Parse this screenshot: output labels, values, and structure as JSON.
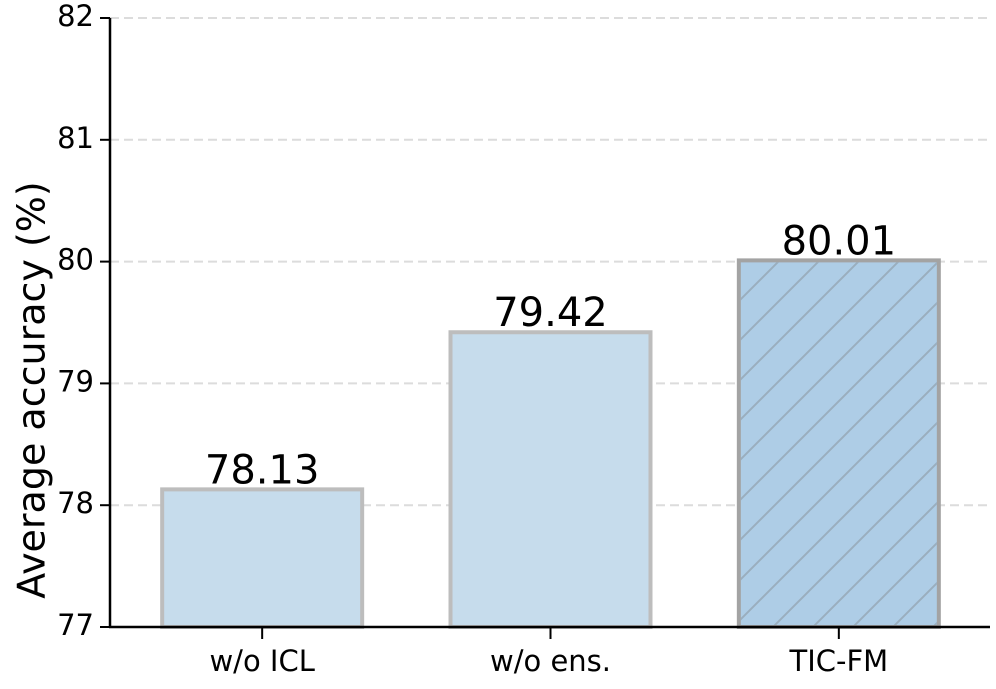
{
  "chart_data": {
    "type": "bar",
    "y_label": "Average accuracy (%)",
    "categories": [
      "w/o ICL",
      "w/o ens.",
      "TIC-FM"
    ],
    "values": [
      78.13,
      79.42,
      80.01
    ],
    "colors": [
      "#c6dcec",
      "#c6dcec",
      "#aecde6"
    ],
    "edge_colors": [
      "#bdbdbd",
      "#bdbdbd",
      "#a3a3a3"
    ],
    "hatched": [
      false,
      false,
      true
    ],
    "ylim": [
      77,
      82
    ],
    "yticks": [
      77,
      78,
      79,
      80,
      81,
      82
    ],
    "grid": true
  }
}
